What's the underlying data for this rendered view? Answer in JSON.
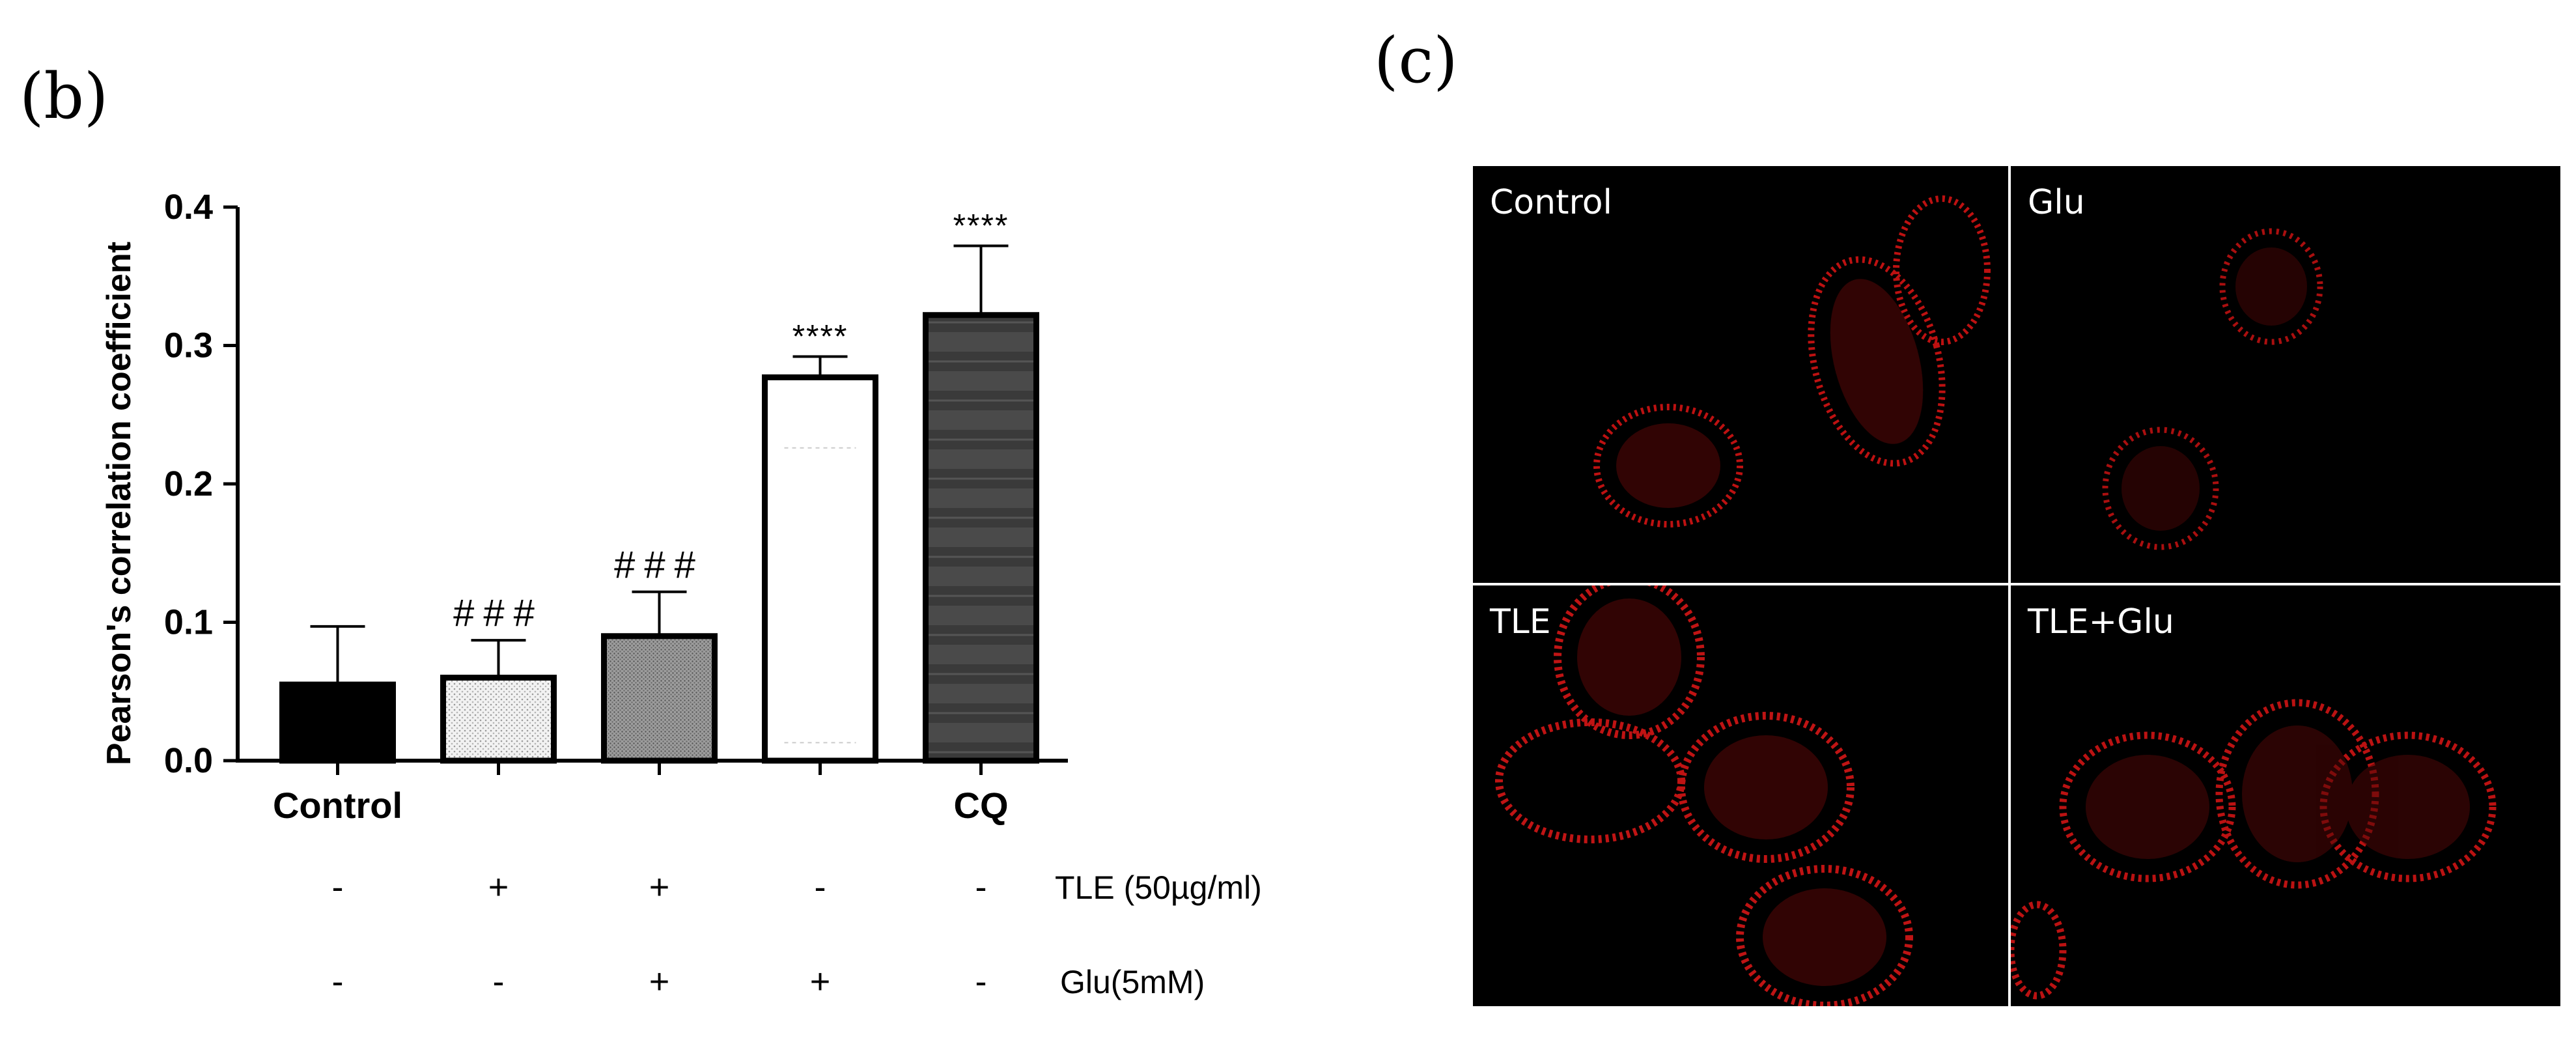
{
  "panel_b": {
    "letter": "(b)"
  },
  "panel_c": {
    "letter": "(c)"
  },
  "chart_data": {
    "type": "bar",
    "title": "",
    "xlabel": "",
    "ylabel": "Pearson's correlation coefficient",
    "ylim": [
      0,
      0.4
    ],
    "yticks": [
      "0.0",
      "0.1",
      "0.2",
      "0.3",
      "0.4"
    ],
    "categories": [
      "Control",
      "",
      "",
      "",
      "CQ"
    ],
    "values": [
      0.055,
      0.06,
      0.09,
      0.277,
      0.322
    ],
    "errors": [
      0.042,
      0.027,
      0.032,
      0.015,
      0.05
    ],
    "annotations": [
      "",
      "###",
      "###",
      "****",
      "****"
    ],
    "bar_patterns": [
      "black",
      "light-dots",
      "gray-dots",
      "white",
      "dark-stripes"
    ],
    "conditions": [
      {
        "label": "TLE (50µg/ml)",
        "values": [
          "-",
          "+",
          "+",
          "-",
          "-"
        ]
      },
      {
        "label": "Glu(5mM)",
        "values": [
          "-",
          "-",
          "+",
          "+",
          "-"
        ]
      }
    ]
  },
  "images": [
    {
      "label": "Control"
    },
    {
      "label": "Glu"
    },
    {
      "label": "TLE"
    },
    {
      "label": "TLE+Glu"
    }
  ]
}
